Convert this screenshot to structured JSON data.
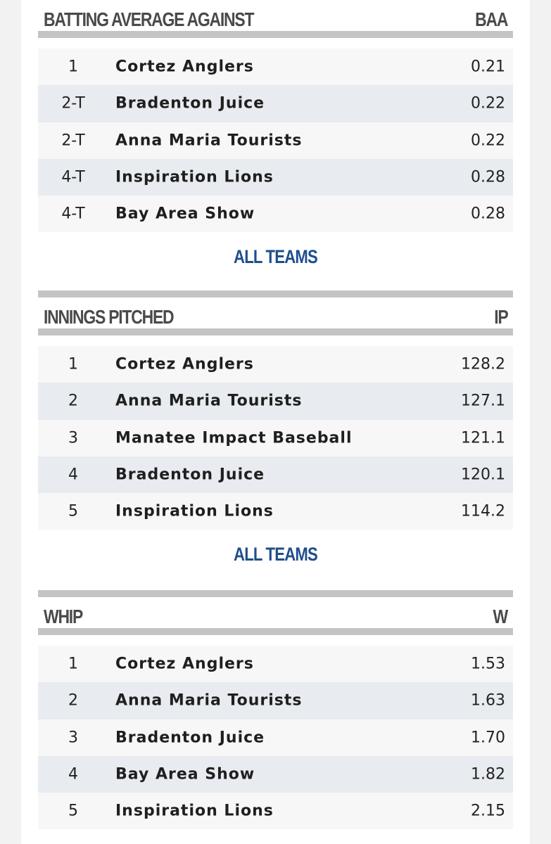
{
  "sections": [
    {
      "title": "BATTING AVERAGE AGAINST",
      "abbr": "BAA",
      "rows": [
        {
          "rank": "1",
          "team": "Cortez Anglers",
          "value": "0.21"
        },
        {
          "rank": "2-T",
          "team": "Bradenton Juice",
          "value": "0.22"
        },
        {
          "rank": "2-T",
          "team": "Anna Maria Tourists",
          "value": "0.22"
        },
        {
          "rank": "4-T",
          "team": "Inspiration Lions",
          "value": "0.28"
        },
        {
          "rank": "4-T",
          "team": "Bay Area Show",
          "value": "0.28"
        }
      ],
      "link": "ALL TEAMS"
    },
    {
      "title": "INNINGS PITCHED",
      "abbr": "IP",
      "rows": [
        {
          "rank": "1",
          "team": "Cortez Anglers",
          "value": "128.2"
        },
        {
          "rank": "2",
          "team": "Anna Maria Tourists",
          "value": "127.1"
        },
        {
          "rank": "3",
          "team": "Manatee Impact Baseball",
          "value": "121.1"
        },
        {
          "rank": "4",
          "team": "Bradenton Juice",
          "value": "120.1"
        },
        {
          "rank": "5",
          "team": "Inspiration Lions",
          "value": "114.2"
        }
      ],
      "link": "ALL TEAMS"
    },
    {
      "title": "WHIP",
      "abbr": "W",
      "rows": [
        {
          "rank": "1",
          "team": "Cortez Anglers",
          "value": "1.53"
        },
        {
          "rank": "2",
          "team": "Anna Maria Tourists",
          "value": "1.63"
        },
        {
          "rank": "3",
          "team": "Bradenton Juice",
          "value": "1.70"
        },
        {
          "rank": "4",
          "team": "Bay Area Show",
          "value": "1.82"
        },
        {
          "rank": "5",
          "team": "Inspiration Lions",
          "value": "2.15"
        }
      ]
    }
  ]
}
